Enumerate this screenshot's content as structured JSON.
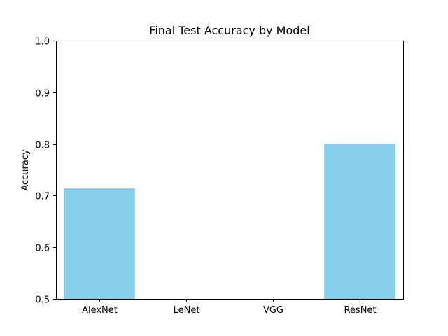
{
  "chart_data": {
    "type": "bar",
    "title": "Final Test Accuracy by Model",
    "xlabel": "",
    "ylabel": "Accuracy",
    "categories": [
      "AlexNet",
      "LeNet",
      "VGG",
      "ResNet"
    ],
    "values": [
      0.714,
      null,
      null,
      0.8
    ],
    "ylim": [
      0.5,
      1.0
    ],
    "yticks": [
      0.5,
      0.6,
      0.7,
      0.8,
      0.9,
      1.0
    ],
    "ytick_labels": [
      "0.5",
      "0.6",
      "0.7",
      "0.8",
      "0.9",
      "1.0"
    ],
    "grid": false,
    "legend": false,
    "bar_color": "#87CEEB",
    "axis_color": "#000000",
    "background_color": "#ffffff"
  }
}
